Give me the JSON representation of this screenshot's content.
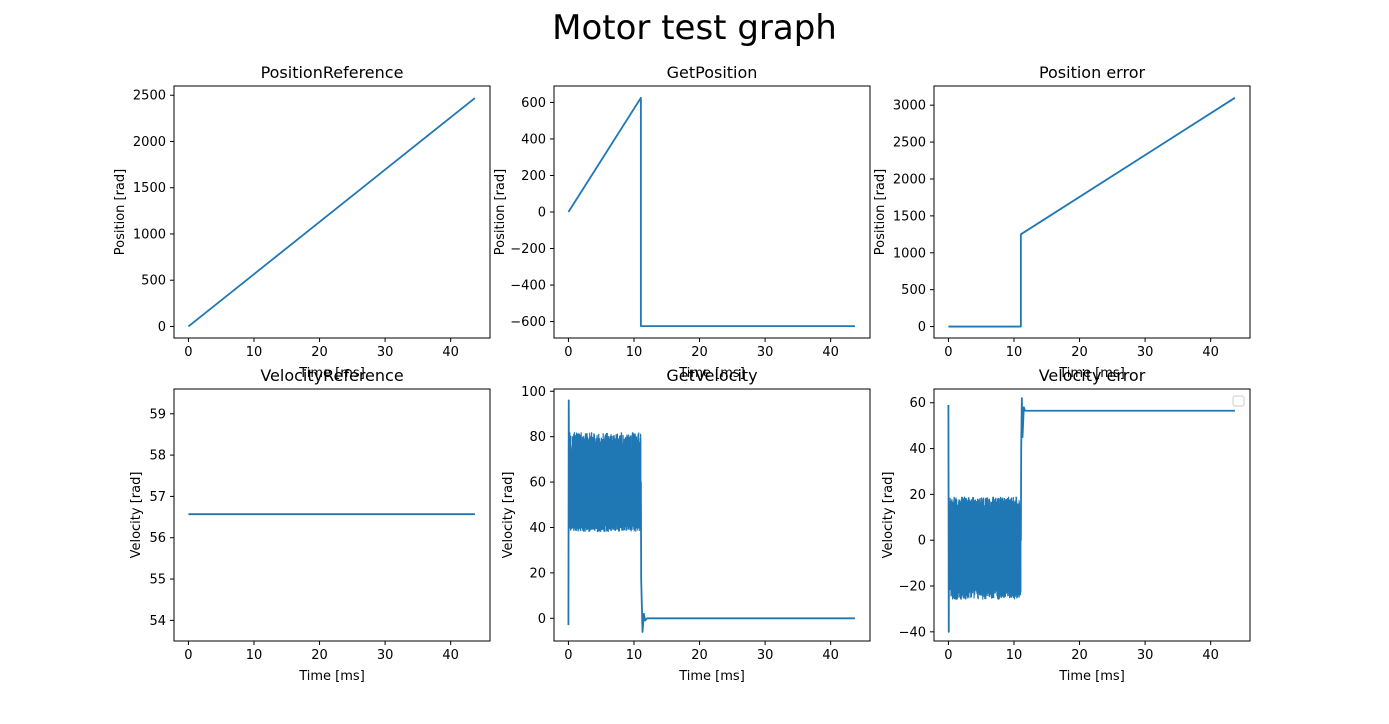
{
  "figure": {
    "suptitle": "Motor test graph",
    "line_color": "#1f77b4"
  },
  "chart_data": [
    {
      "type": "line",
      "title": "PositionReference",
      "xlabel": "Time [ms]",
      "ylabel": "Position [rad]",
      "xlim": [
        -2.2,
        46
      ],
      "ylim": [
        -125,
        2600
      ],
      "xticks": [
        0,
        10,
        20,
        30,
        40
      ],
      "yticks": [
        0,
        500,
        1000,
        1500,
        2000,
        2500
      ],
      "series": [
        {
          "x": [
            0,
            43.7
          ],
          "y": [
            0,
            2470
          ]
        }
      ]
    },
    {
      "type": "line",
      "title": "GetPosition",
      "xlabel": "Time [ms]",
      "ylabel": "Position [rad]",
      "xlim": [
        -2.2,
        46
      ],
      "ylim": [
        -690,
        690
      ],
      "xticks": [
        0,
        10,
        20,
        30,
        40
      ],
      "yticks": [
        -600,
        -400,
        -200,
        0,
        200,
        400,
        600
      ],
      "series": [
        {
          "x": [
            0,
            11.05,
            11.05,
            43.7
          ],
          "y": [
            0,
            625,
            -625,
            -625
          ]
        }
      ]
    },
    {
      "type": "line",
      "title": "Position error",
      "xlabel": "Time [ms]",
      "ylabel": "Position [rad]",
      "xlim": [
        -2.2,
        46
      ],
      "ylim": [
        -155,
        3260
      ],
      "xticks": [
        0,
        10,
        20,
        30,
        40
      ],
      "yticks": [
        0,
        500,
        1000,
        1500,
        2000,
        2500,
        3000
      ],
      "series": [
        {
          "x": [
            0,
            11.05,
            11.05,
            43.7
          ],
          "y": [
            0,
            0,
            1250,
            3100
          ]
        }
      ]
    },
    {
      "type": "line",
      "title": "VelocityReference",
      "xlabel": "Time [ms]",
      "ylabel": "Velocity [rad]",
      "xlim": [
        -2.2,
        46
      ],
      "ylim": [
        53.5,
        59.6
      ],
      "xticks": [
        0,
        10,
        20,
        30,
        40
      ],
      "yticks": [
        54,
        55,
        56,
        57,
        58,
        59
      ],
      "series": [
        {
          "x": [
            0,
            43.7
          ],
          "y": [
            56.57,
            56.57
          ]
        }
      ]
    },
    {
      "type": "line",
      "title": "GetVelocity",
      "xlabel": "Time [ms]",
      "ylabel": "Velocity [rad]",
      "xlim": [
        -2.2,
        46
      ],
      "ylim": [
        -10,
        101
      ],
      "xticks": [
        0,
        10,
        20,
        30,
        40
      ],
      "yticks": [
        0,
        20,
        40,
        60,
        80,
        100
      ],
      "noise_band": {
        "x": [
          0.2,
          11.05
        ],
        "low": [
          38,
          44
        ],
        "high": [
          70,
          82
        ]
      },
      "series": [
        {
          "x": [
            0,
            0.05,
            0.1,
            0.2,
            11.05,
            11.1,
            11.3,
            11.5,
            11.7,
            12,
            43.7
          ],
          "y": [
            -3,
            96,
            40,
            60,
            60,
            17,
            -6,
            2,
            -1,
            0,
            0
          ]
        }
      ]
    },
    {
      "type": "line",
      "title": "Velocity error",
      "xlabel": "Time [ms]",
      "ylabel": "Velocity [rad]",
      "xlim": [
        -2.2,
        46
      ],
      "ylim": [
        -44,
        66
      ],
      "xticks": [
        0,
        10,
        20,
        30,
        40
      ],
      "yticks": [
        -40,
        -20,
        0,
        20,
        40,
        60
      ],
      "noise_band": {
        "x": [
          0.2,
          11.05
        ],
        "low": [
          -26,
          -18
        ],
        "high": [
          10,
          19
        ]
      },
      "series": [
        {
          "x": [
            0,
            0.05,
            0.1,
            0.2,
            11.05,
            11.1,
            11.2,
            11.3,
            11.5,
            11.7,
            43.7
          ],
          "y": [
            59,
            -40,
            15,
            0,
            0,
            40,
            62,
            45,
            58,
            56.5,
            56.5
          ]
        }
      ],
      "legend": "top-right",
      "legend_entries": []
    }
  ]
}
